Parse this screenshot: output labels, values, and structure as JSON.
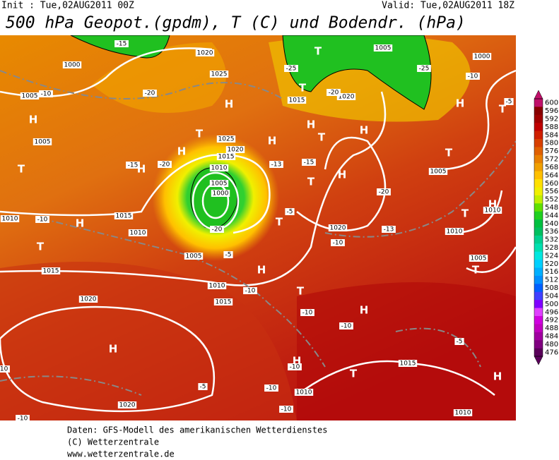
{
  "header": {
    "init": "Init : Tue,02AUG2011 00Z",
    "valid": "Valid: Tue,02AUG2011 18Z",
    "title": "500 hPa Geopot.(gpdm), T (C) und Bodendr. (hPa)"
  },
  "colorbar": {
    "ticks": [
      600,
      596,
      592,
      588,
      584,
      580,
      576,
      572,
      568,
      564,
      560,
      556,
      552,
      548,
      544,
      540,
      536,
      532,
      528,
      524,
      520,
      516,
      512,
      508,
      504,
      500,
      496,
      492,
      488,
      484,
      480,
      476
    ],
    "colors": [
      "#c0106a",
      "#880000",
      "#a00000",
      "#c00000",
      "#d02000",
      "#d84000",
      "#e06000",
      "#e88000",
      "#f0a000",
      "#ffc000",
      "#ffe000",
      "#f0f000",
      "#c0f000",
      "#60e000",
      "#20d020",
      "#00c040",
      "#00c060",
      "#00d090",
      "#00e0b0",
      "#00e8e0",
      "#00d0ff",
      "#00b0ff",
      "#0090ff",
      "#0060ff",
      "#4040ff",
      "#8000ff",
      "#e040ff",
      "#d000e0",
      "#c000c0",
      "#a000a0",
      "#800080",
      "#5a005a"
    ]
  },
  "map_labels": [
    "H",
    "H",
    "T",
    "T",
    "H",
    "H",
    "T",
    "H",
    "H",
    "H",
    "T",
    "H",
    "T",
    "T",
    "H",
    "T",
    "T",
    "H",
    "T",
    "H",
    "H",
    "H",
    "T",
    "T",
    "H",
    "T",
    "H",
    "T",
    "T",
    "H",
    "1005",
    "1000",
    "1005",
    "1015",
    "1010",
    "1010",
    "1015",
    "1020",
    "1020",
    "1005",
    "1010",
    "1015",
    "1025",
    "1020",
    "1025",
    "1020",
    "1015",
    "1010",
    "1005",
    "1000",
    "1015",
    "1020",
    "1020",
    "1015",
    "1010",
    "1005",
    "1010",
    "1010",
    "1005",
    "1000",
    "1005",
    "1010",
    "-10",
    "-20",
    "-20",
    "-15",
    "-20",
    "-5",
    "-10",
    "-13",
    "-15",
    "-5",
    "-10",
    "-13",
    "-20",
    "-20",
    "-25",
    "-25",
    "-15",
    "-10",
    "-10",
    "-10",
    "-10",
    "-5",
    "-10",
    "-10",
    "-5",
    "-5",
    "-10",
    "-10",
    "-10"
  ],
  "footer": [
    "Daten: GFS-Modell des amerikanischen Wetterdienstes",
    "(C) Wetterzentrale",
    "www.wetterzentrale.de"
  ]
}
